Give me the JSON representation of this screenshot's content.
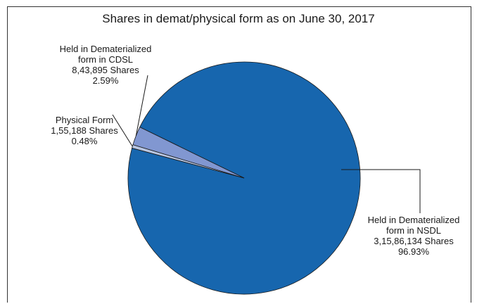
{
  "chart_data": {
    "type": "pie",
    "title": "Shares in demat/physical form as on June 30, 2017",
    "slices": [
      {
        "label_lines": [
          "Held in Dematerialized",
          "form in NSDL"
        ],
        "shares": "3,15,86,134 Shares",
        "percent_text": "96.93%",
        "value": 96.93,
        "color": "#1766ae"
      },
      {
        "label_lines": [
          "Physical Form"
        ],
        "shares": "1,55,188 Shares",
        "percent_text": "0.48%",
        "value": 0.48,
        "color": "#b8c6e2"
      },
      {
        "label_lines": [
          "Held in Dematerialized",
          "form in CDSL"
        ],
        "shares": "8,43,895 Shares",
        "percent_text": "2.59%",
        "value": 2.59,
        "color": "#8197d1"
      }
    ]
  }
}
